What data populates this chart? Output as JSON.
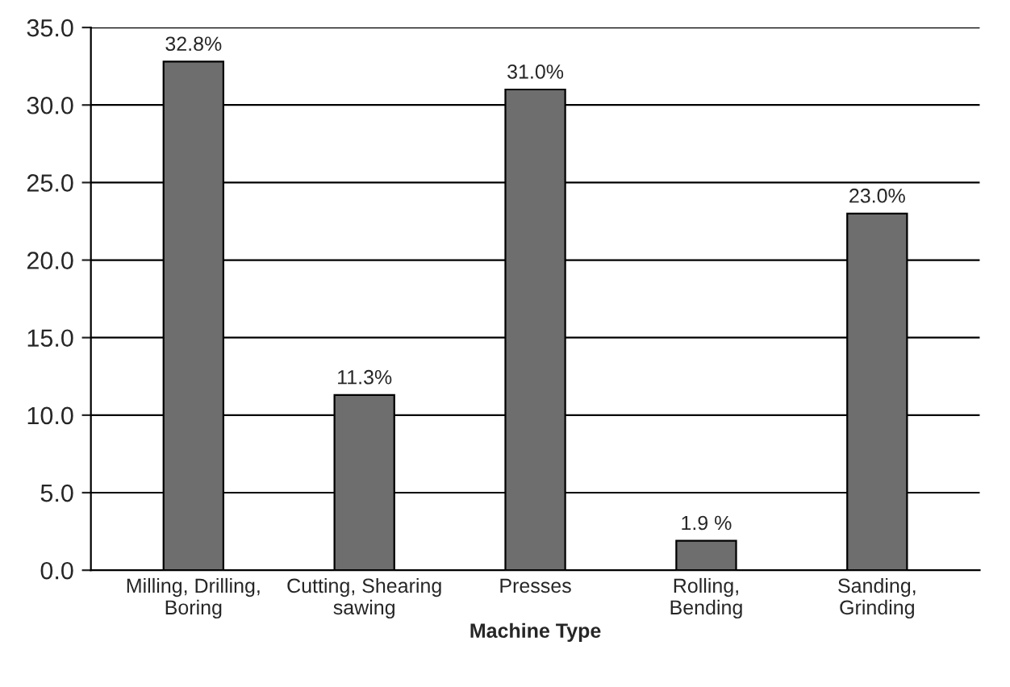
{
  "chart_data": {
    "type": "bar",
    "xlabel": "Machine Type",
    "categories": [
      "Milling, Drilling,\nBoring",
      "Cutting, Shearing\nsawing",
      "Presses",
      "Rolling,\nBending",
      "Sanding,\nGrinding"
    ],
    "values": [
      32.8,
      11.3,
      31.0,
      1.9,
      23.0
    ],
    "value_labels": [
      "32.8%",
      "11.3%",
      "31.0%",
      "1.9 %",
      "23.0%"
    ],
    "color": "#6e6e6e",
    "ylim": [
      0,
      35
    ],
    "yticks": [
      {
        "value": 0,
        "label": "0.0"
      },
      {
        "value": 5,
        "label": "5.0"
      },
      {
        "value": 10,
        "label": "10.0"
      },
      {
        "value": 15,
        "label": "15.0"
      },
      {
        "value": 20,
        "label": "20.0"
      },
      {
        "value": 25,
        "label": "25.0"
      },
      {
        "value": 30,
        "label": "30.0"
      },
      {
        "value": 35,
        "label": "35.0"
      }
    ],
    "grid": "y"
  }
}
